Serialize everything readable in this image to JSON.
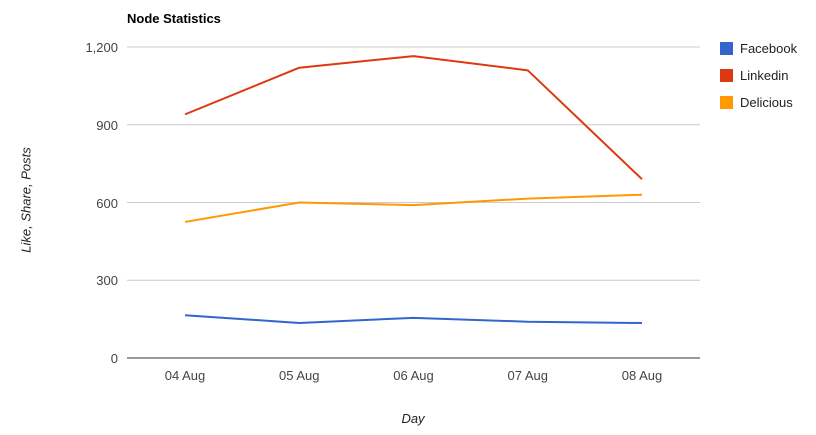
{
  "header": {
    "title": "Node Statistics"
  },
  "chart_data": {
    "type": "line",
    "title": "Node Statistics",
    "xlabel": "Day",
    "ylabel": "Like, Share, Posts",
    "categories": [
      "04 Aug",
      "05 Aug",
      "06 Aug",
      "07 Aug",
      "08 Aug"
    ],
    "series": [
      {
        "name": "Facebook",
        "color": "#3366CC",
        "values": [
          165,
          135,
          155,
          140,
          135
        ]
      },
      {
        "name": "Linkedin",
        "color": "#DC3912",
        "values": [
          940,
          1120,
          1165,
          1110,
          690
        ]
      },
      {
        "name": "Delicious",
        "color": "#FF9900",
        "values": [
          525,
          600,
          590,
          615,
          630
        ]
      }
    ],
    "ylim": [
      0,
      1200
    ],
    "yticks": [
      0,
      300,
      600,
      900,
      1200
    ],
    "ytick_labels": [
      "0",
      "300",
      "600",
      "900",
      "1,200"
    ],
    "grid": true,
    "legend_position": "right",
    "colors": {
      "gridline": "#cccccc",
      "baseline": "#333333"
    }
  }
}
